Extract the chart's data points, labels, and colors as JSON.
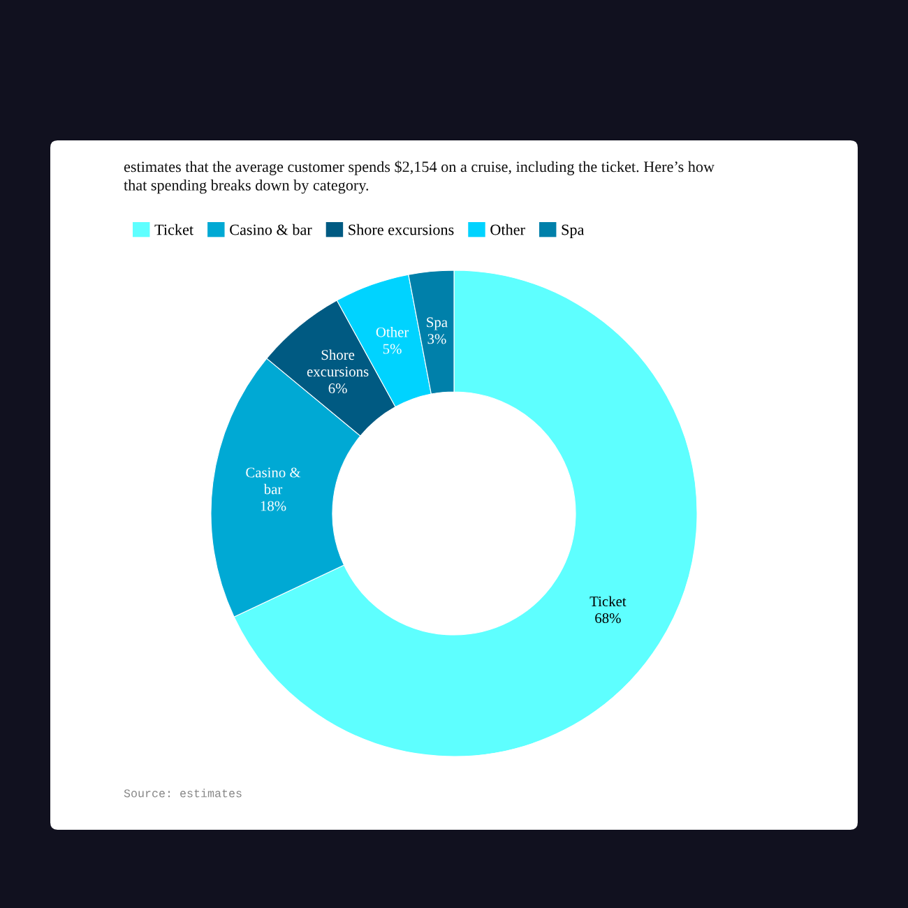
{
  "chart_data": {
    "type": "donut",
    "subtitle": "estimates that the average customer spends $2,154 on a cruise, including the ticket. Here’s how that spending breaks down by category.",
    "categories": [
      "Ticket",
      "Casino & bar",
      "Shore excursions",
      "Other",
      "Spa"
    ],
    "values": [
      68,
      18,
      6,
      5,
      3
    ],
    "value_labels": [
      "68%",
      "18%",
      "6%",
      "5%",
      "3%"
    ],
    "colors": [
      "#5effff",
      "#00a9d4",
      "#005a82",
      "#00d3ff",
      "#0080aa"
    ],
    "legend": "top left",
    "annotations": [
      "Source: estimates"
    ]
  }
}
